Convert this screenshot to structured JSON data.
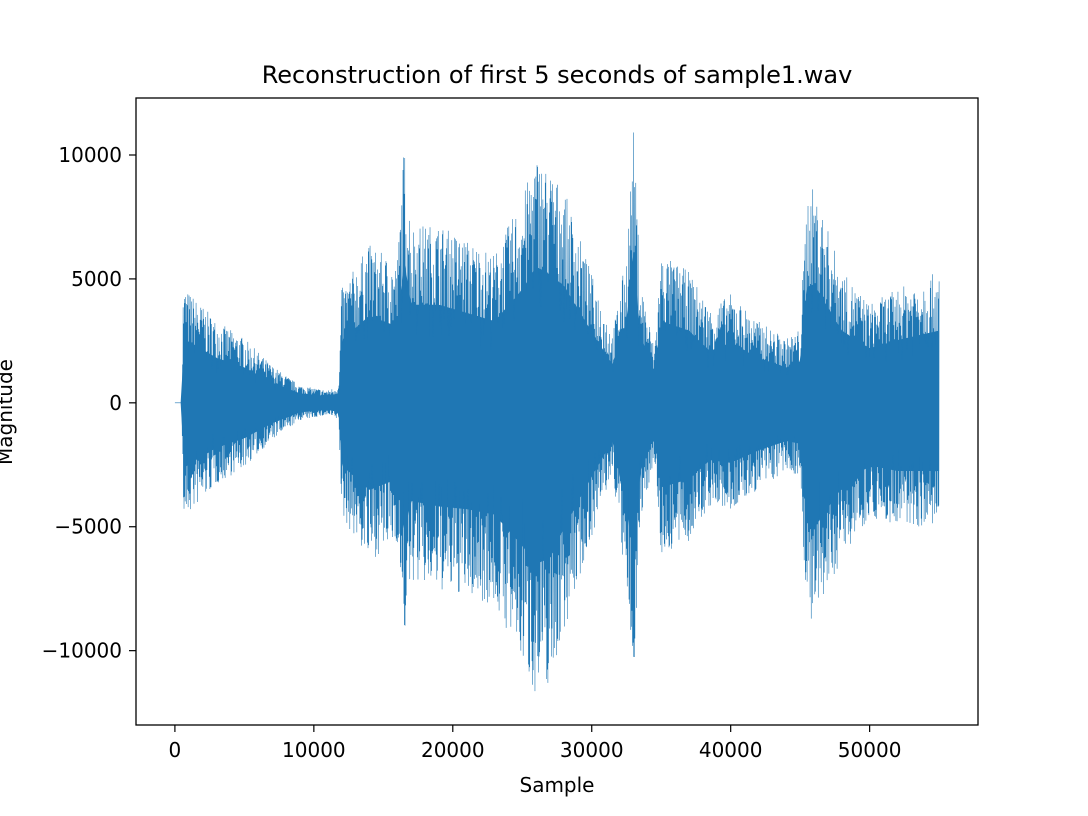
{
  "chart_data": {
    "type": "line",
    "title": "Reconstruction of first 5 seconds of sample1.wav",
    "xlabel": "Sample",
    "ylabel": "Magnitude",
    "xlim": [
      -2800,
      57800
    ],
    "ylim": [
      -13000,
      12300
    ],
    "xticks": [
      0,
      10000,
      20000,
      30000,
      40000,
      50000
    ],
    "xtick_labels": [
      "0",
      "10000",
      "20000",
      "30000",
      "40000",
      "50000"
    ],
    "yticks": [
      -10000,
      -5000,
      0,
      5000,
      10000
    ],
    "ytick_labels": [
      "−10000",
      "−5000",
      "0",
      "5000",
      "10000"
    ],
    "grid": false,
    "series": [
      {
        "color": "#1f77b4",
        "envelope": {
          "x": [
            0,
            500,
            600,
            1500,
            3000,
            5000,
            7000,
            9000,
            11000,
            11800,
            12000,
            14000,
            16000,
            16500,
            17000,
            19000,
            21000,
            23000,
            25000,
            26000,
            27000,
            28000,
            30000,
            31500,
            32500,
            33000,
            33500,
            34500,
            35000,
            37000,
            38500,
            40000,
            42000,
            44000,
            45000,
            45500,
            46000,
            48000,
            50000,
            52000,
            55000
          ],
          "upper": [
            0,
            0,
            4700,
            4200,
            3300,
            2600,
            1500,
            700,
            500,
            700,
            4600,
            6400,
            5600,
            10500,
            7200,
            7200,
            6600,
            6000,
            8300,
            10000,
            9400,
            8600,
            5200,
            2800,
            6000,
            11000,
            5000,
            2200,
            6000,
            5300,
            3800,
            4400,
            3300,
            2600,
            3000,
            8500,
            8700,
            5300,
            4000,
            4600,
            5300
          ],
          "lower": [
            0,
            0,
            -4800,
            -4200,
            -3300,
            -2600,
            -1500,
            -700,
            -500,
            -700,
            -4600,
            -6400,
            -5600,
            -9600,
            -7200,
            -7600,
            -7800,
            -8200,
            -10500,
            -11800,
            -11400,
            -9200,
            -5400,
            -2800,
            -7800,
            -11200,
            -5000,
            -2200,
            -6200,
            -5600,
            -4200,
            -4400,
            -3500,
            -2800,
            -3000,
            -8800,
            -9200,
            -6200,
            -4600,
            -5000,
            -5000
          ]
        }
      }
    ]
  }
}
